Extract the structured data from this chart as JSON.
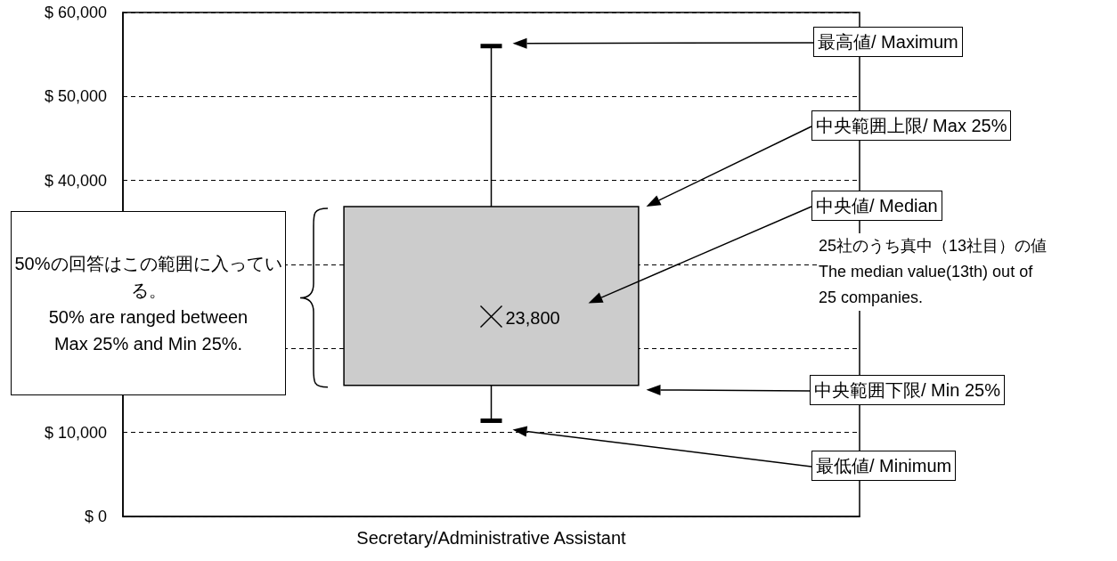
{
  "chart_data": {
    "type": "box",
    "categories": [
      "Secretary/Administrative Assistant"
    ],
    "boxes": [
      {
        "low": 11400,
        "q1": 15600,
        "median": 23800,
        "q3": 36900,
        "high": 56000
      }
    ],
    "color": "#cccccc",
    "ylim": [
      0,
      60000
    ],
    "yticks": [
      {
        "value": 0,
        "label": "$ 0"
      },
      {
        "value": 10000,
        "label": "$ 10,000"
      },
      {
        "value": 20000,
        "label": null
      },
      {
        "value": 30000,
        "label": null
      },
      {
        "value": 40000,
        "label": "$ 40,000"
      },
      {
        "value": 50000,
        "label": "$ 50,000"
      },
      {
        "value": 60000,
        "label": "$ 60,000"
      }
    ],
    "grid": "y",
    "annotations": [
      "最高値/ Maximum",
      "中央範囲上限/ Max 25%",
      "中央値/ Median",
      "中央範囲下限/ Min 25%",
      "最低値/ Minimum",
      "25社のうち真中（13社目）の値\nThe median value(13th) out of\n25 companies.",
      "50%の回答はこの範囲に入っている。\n50% are ranged between\nMax 25% and Min 25%.",
      {
        "text": "23,800",
        "x": "Secretary/Administrative Assistant",
        "y": 23800
      }
    ]
  }
}
